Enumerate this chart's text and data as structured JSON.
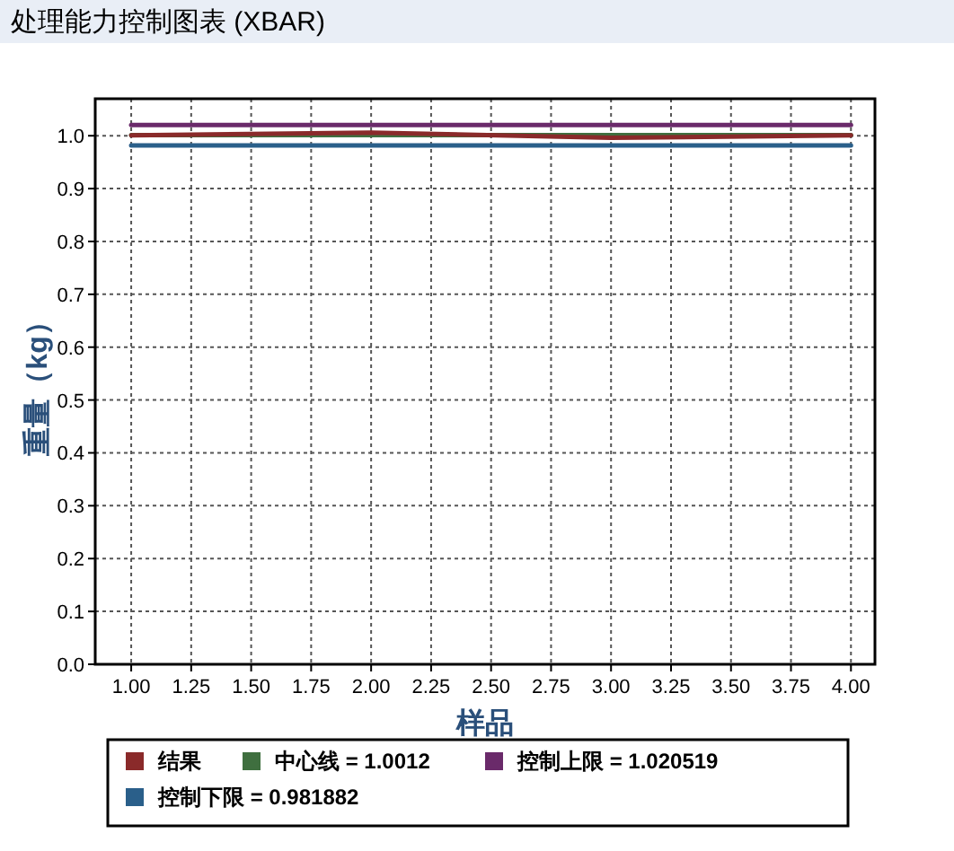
{
  "chart_data": {
    "type": "line",
    "title": "处理能力控制图表 (XBAR)",
    "xlabel": "样品",
    "ylabel": "重量（kg）",
    "x": [
      1,
      2,
      3,
      4
    ],
    "series": [
      {
        "name": "结果",
        "color": "#8a2a2a",
        "values": [
          1.001,
          1.006,
          0.996,
          1.001
        ]
      },
      {
        "name": "中心线 = 1.0012",
        "color": "#3f6f3f",
        "values": [
          1.0012,
          1.0012,
          1.0012,
          1.0012
        ]
      },
      {
        "name": "控制上限 = 1.020519",
        "color": "#6a2a6a",
        "values": [
          1.020519,
          1.020519,
          1.020519,
          1.020519
        ]
      },
      {
        "name": "控制下限 = 0.981882",
        "color": "#2a5f8a",
        "values": [
          0.981882,
          0.981882,
          0.981882,
          0.981882
        ]
      }
    ],
    "xlim": [
      0.85,
      4.1
    ],
    "xticks": [
      {
        "value": 1,
        "label": "1.00"
      },
      {
        "value": 1.25,
        "label": "1.25"
      },
      {
        "value": 1.5,
        "label": "1.50"
      },
      {
        "value": 1.75,
        "label": "1.75"
      },
      {
        "value": 2,
        "label": "2.00"
      },
      {
        "value": 2.25,
        "label": "2.25"
      },
      {
        "value": 2.5,
        "label": "2.50"
      },
      {
        "value": 2.75,
        "label": "2.75"
      },
      {
        "value": 3,
        "label": "3.00"
      },
      {
        "value": 3.25,
        "label": "3.25"
      },
      {
        "value": 3.5,
        "label": "3.50"
      },
      {
        "value": 3.75,
        "label": "3.75"
      },
      {
        "value": 4,
        "label": "4.00"
      }
    ],
    "ylim": [
      0,
      1.07
    ],
    "yticks": [
      {
        "value": 0,
        "label": "0.0"
      },
      {
        "value": 0.1,
        "label": "0.1"
      },
      {
        "value": 0.2,
        "label": "0.2"
      },
      {
        "value": 0.3,
        "label": "0.3"
      },
      {
        "value": 0.4,
        "label": "0.4"
      },
      {
        "value": 0.5,
        "label": "0.5"
      },
      {
        "value": 0.6,
        "label": "0.6"
      },
      {
        "value": 0.7,
        "label": "0.7"
      },
      {
        "value": 0.8,
        "label": "0.8"
      },
      {
        "value": 0.9,
        "label": "0.9"
      },
      {
        "value": 1,
        "label": "1.0"
      }
    ],
    "grid": true,
    "legend": "bottom",
    "marker": "none",
    "line_style": "solid"
  }
}
